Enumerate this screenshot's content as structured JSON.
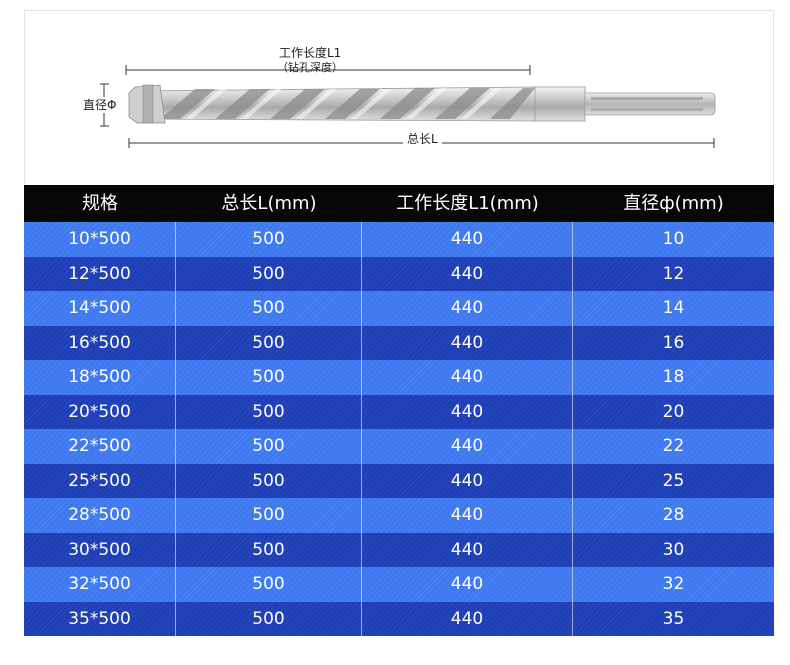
{
  "diagram": {
    "working_length_label": "工作长度L1",
    "working_length_note": "（钻孔深度）",
    "diameter_label": "直径Φ",
    "total_length_label": "总长L",
    "drill_icon": "sds-hammer-drill-bit"
  },
  "table": {
    "headers": [
      "规格",
      "总长L(mm)",
      "工作长度L1(mm)",
      "直径ф(mm)"
    ],
    "rows": [
      [
        "10*500",
        "500",
        "440",
        "10"
      ],
      [
        "12*500",
        "500",
        "440",
        "12"
      ],
      [
        "14*500",
        "500",
        "440",
        "14"
      ],
      [
        "16*500",
        "500",
        "440",
        "16"
      ],
      [
        "18*500",
        "500",
        "440",
        "18"
      ],
      [
        "20*500",
        "500",
        "440",
        "20"
      ],
      [
        "22*500",
        "500",
        "440",
        "22"
      ],
      [
        "25*500",
        "500",
        "440",
        "25"
      ],
      [
        "28*500",
        "500",
        "440",
        "28"
      ],
      [
        "30*500",
        "500",
        "440",
        "30"
      ],
      [
        "32*500",
        "500",
        "440",
        "32"
      ],
      [
        "35*500",
        "500",
        "440",
        "35"
      ]
    ],
    "colors": {
      "header_bg": "#070707",
      "row_light": "#3f79f0",
      "row_dark": "#1f3fb6",
      "text": "#ffffff"
    }
  }
}
